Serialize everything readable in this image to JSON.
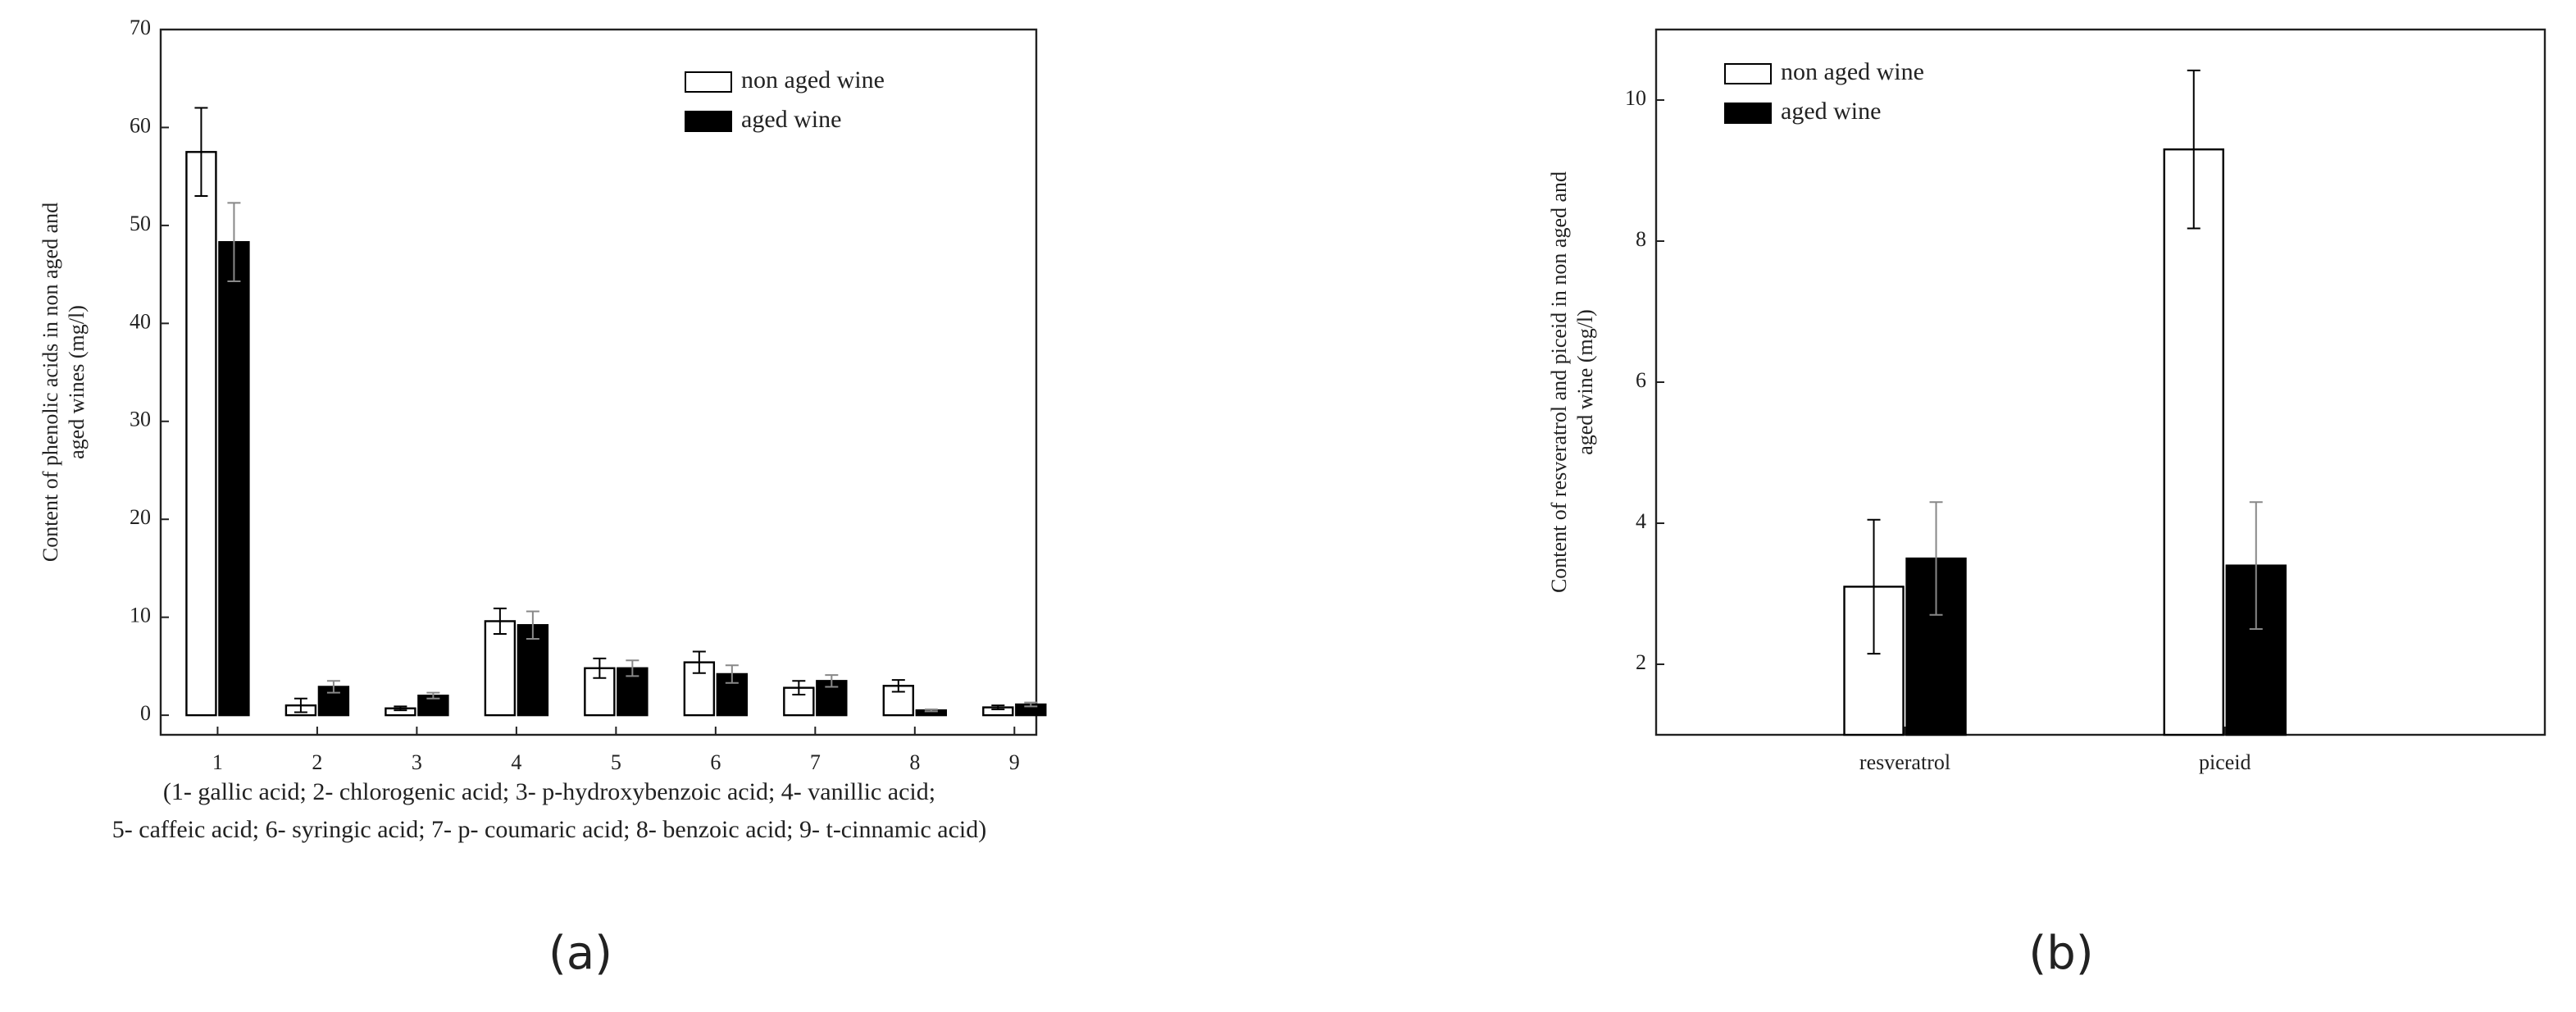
{
  "chart_data": [
    {
      "type": "bar",
      "y_label": [
        "Content of phenolic acids in non aged and",
        "aged wines (mg/l)"
      ],
      "categories": [
        "1",
        "2",
        "3",
        "4",
        "5",
        "6",
        "7",
        "8",
        "9"
      ],
      "caption_lines": [
        "(1- gallic acid; 2- chlorogenic acid; 3- p-hydroxybenzoic acid; 4- vanillic acid;",
        "5- caffeic acid; 6- syringic acid; 7- p- coumaric acid; 8- benzoic acid; 9- t-cinnamic acid)"
      ],
      "panel_label": "(a)",
      "series": [
        {
          "name": "non aged wine",
          "color": "#ffffff",
          "values": [
            57.5,
            1.0,
            0.7,
            9.6,
            4.8,
            5.4,
            2.8,
            3.0,
            0.8
          ],
          "errors": [
            4.5,
            0.7,
            0.2,
            1.3,
            1.0,
            1.1,
            0.7,
            0.6,
            0.2
          ]
        },
        {
          "name": "aged wine",
          "color": "#000000",
          "values": [
            48.3,
            2.9,
            2.0,
            9.2,
            4.8,
            4.2,
            3.5,
            0.5,
            1.1
          ],
          "errors": [
            4.0,
            0.6,
            0.3,
            1.4,
            0.8,
            0.9,
            0.6,
            0.1,
            0.2
          ]
        }
      ],
      "ylim": [
        -2,
        70
      ],
      "yticks": [
        0,
        10,
        20,
        30,
        40,
        50,
        60,
        70
      ],
      "legend": "upper right"
    },
    {
      "type": "bar",
      "y_label": [
        "Content of resveratrol and piceid in non aged and",
        "aged wine (mg/l)"
      ],
      "categories": [
        "resveratrol",
        "piceid"
      ],
      "panel_label": "(b)",
      "series": [
        {
          "name": "non aged wine",
          "color": "#ffffff",
          "values": [
            3.1,
            9.3
          ],
          "errors": [
            0.95,
            1.12
          ]
        },
        {
          "name": "aged wine",
          "color": "#000000",
          "values": [
            3.5,
            3.4
          ],
          "errors": [
            0.8,
            0.9
          ]
        }
      ],
      "ylim": [
        1,
        11
      ],
      "yticks": [
        2,
        4,
        6,
        8,
        10
      ],
      "legend": "upper left"
    }
  ]
}
